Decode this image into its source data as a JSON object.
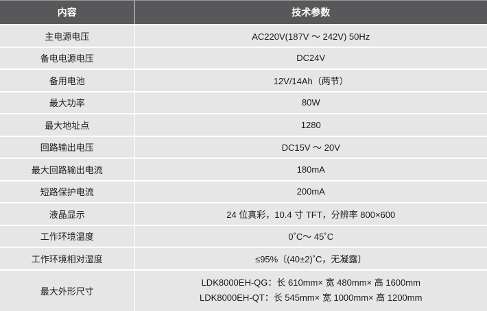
{
  "header": {
    "col1": "内容",
    "col2": "技术参数"
  },
  "rows": [
    {
      "item": "主电源电压",
      "value": "AC220V(187V ～ 242V)   50Hz"
    },
    {
      "item": "备电电源电压",
      "value": "DC24V"
    },
    {
      "item": "备用电池",
      "value": "12V/14Ah（两节）"
    },
    {
      "item": "最大功率",
      "value": "80W"
    },
    {
      "item": "最大地址点",
      "value": "1280"
    },
    {
      "item": "回路输出电压",
      "value": "DC15V ～ 20V"
    },
    {
      "item": "最大回路输出电流",
      "value": "180mA"
    },
    {
      "item": "短路保护电流",
      "value": "200mA"
    },
    {
      "item": "液晶显示",
      "value": "24 位真彩，10.4 寸 TFT，分辨率 800×600"
    },
    {
      "item": "工作环境温度",
      "value": "0˚C～ 45˚C"
    },
    {
      "item": "工作环境相对湿度",
      "value": "≤95%〔(40±2)˚C，无凝露〕"
    },
    {
      "item": "最大外形尺寸",
      "lines": [
        "LDK8000EH-QG：长 610mm× 宽 480mm× 高 1600mm",
        "LDK8000EH-QT：长 545mm× 宽 1000mm× 高 1200mm"
      ]
    }
  ]
}
